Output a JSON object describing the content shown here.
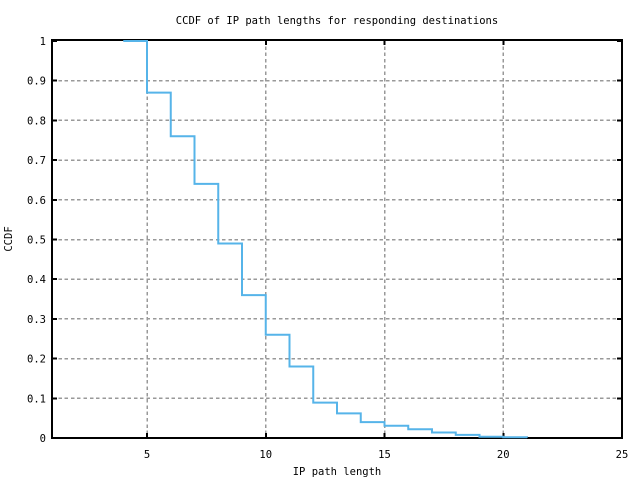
{
  "chart_data": {
    "type": "line",
    "subtype": "steps",
    "title": "CCDF of IP path lengths for responding destinations",
    "xlabel": "IP path length",
    "ylabel": "CCDF",
    "xlim": [
      1,
      25
    ],
    "ylim": [
      0,
      1
    ],
    "x_ticks": [
      5,
      10,
      15,
      20,
      25
    ],
    "x_tick_labels": [
      "5",
      "10",
      "15",
      "20",
      "25"
    ],
    "y_ticks": [
      0,
      0.1,
      0.2,
      0.3,
      0.4,
      0.5,
      0.6,
      0.7,
      0.8,
      0.9,
      1
    ],
    "y_tick_labels": [
      "0",
      "0.1",
      "0.2",
      "0.3",
      "0.4",
      "0.5",
      "0.6",
      "0.7",
      "0.8",
      "0.9",
      "1"
    ],
    "grid": true,
    "legend": "none",
    "colors": {
      "background": "#ffffff",
      "line": "#56B4E9",
      "grid": "#999999",
      "axis": "#000000",
      "text": "#000000"
    },
    "series": [
      {
        "name": "ccdf",
        "style": "steps",
        "x": [
          4,
          5,
          6,
          7,
          8,
          9,
          10,
          11,
          12,
          13,
          14,
          15,
          16,
          17,
          18,
          19,
          20,
          21
        ],
        "y": [
          1.0,
          0.87,
          0.76,
          0.64,
          0.49,
          0.36,
          0.26,
          0.18,
          0.089,
          0.062,
          0.04,
          0.031,
          0.022,
          0.014,
          0.008,
          0.003,
          0.002,
          0.001
        ]
      }
    ]
  }
}
